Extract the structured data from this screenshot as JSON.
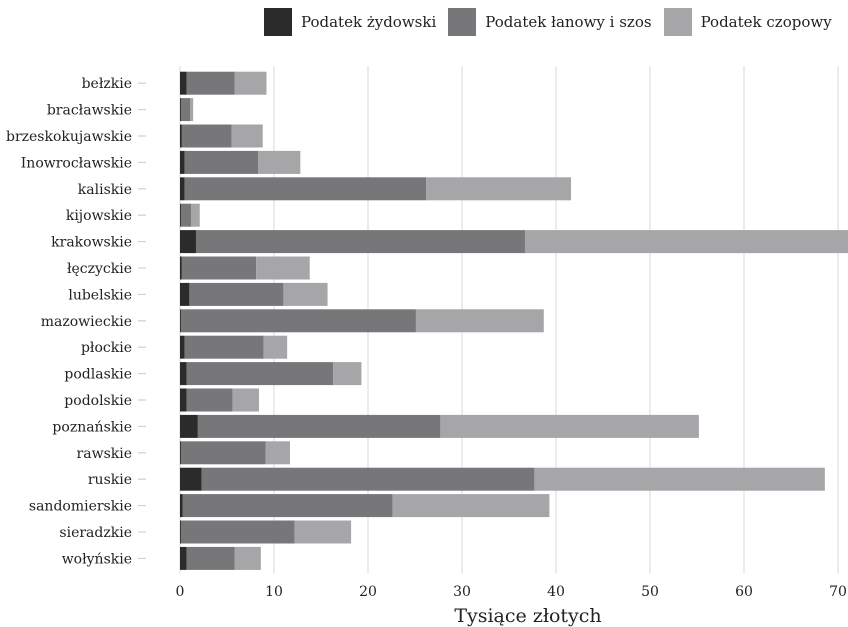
{
  "chart_data": {
    "type": "bar",
    "orientation": "horizontal",
    "stacked": true,
    "categories": [
      "bełzkie",
      "bracławskie",
      "brzeskokujawskie",
      "Inowrocławskie",
      "kaliskie",
      "kijowskie",
      "krakowskie",
      "łęczyckie",
      "lubelskie",
      "mazowieckie",
      "płockie",
      "podlaskie",
      "podolskie",
      "poznańskie",
      "rawskie",
      "ruskie",
      "sandomierskie",
      "sieradzkie",
      "wołyńskie"
    ],
    "series": [
      {
        "name": "Podatek żydowski",
        "color": "#2b2b2b",
        "values": [
          0.7,
          0.1,
          0.2,
          0.5,
          0.5,
          0.1,
          1.7,
          0.2,
          1.0,
          0.1,
          0.5,
          0.7,
          0.7,
          1.9,
          0.1,
          2.3,
          0.3,
          0.1,
          0.7
        ]
      },
      {
        "name": "Podatek łanowy i szos",
        "color": "#777779",
        "values": [
          5.1,
          1.0,
          5.3,
          7.8,
          25.7,
          1.1,
          35.0,
          7.9,
          10.0,
          25.0,
          8.4,
          15.6,
          4.9,
          25.8,
          9.0,
          35.4,
          22.3,
          12.1,
          5.1
        ]
      },
      {
        "name": "Podatek czopowy",
        "color": "#a6a6a8",
        "values": [
          3.4,
          0.3,
          3.3,
          4.5,
          15.4,
          0.9,
          34.5,
          5.7,
          4.7,
          13.6,
          2.5,
          3.0,
          2.8,
          27.5,
          2.6,
          30.9,
          16.7,
          6.0,
          2.8
        ]
      }
    ],
    "xlabel": "Tysiące złotych",
    "ylabel": "",
    "xlim": [
      0,
      71
    ],
    "xticks": [
      0,
      10,
      20,
      30,
      40,
      50,
      60,
      70
    ],
    "grid": "vertical",
    "legend_position": "top"
  }
}
